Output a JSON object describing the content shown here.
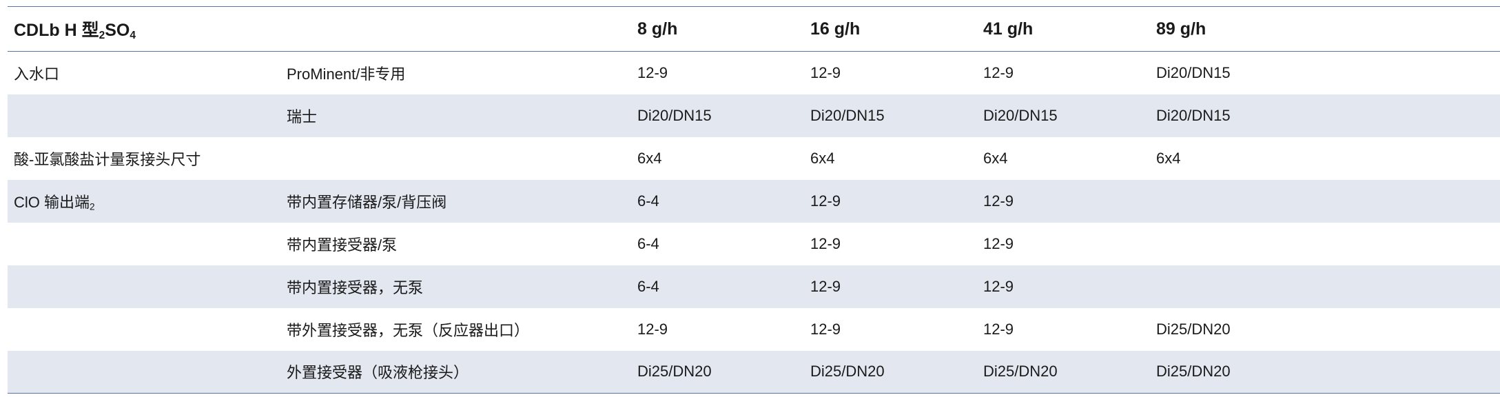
{
  "table": {
    "header": {
      "title": "CDLb H 型",
      "title_sub1": "2",
      "title_mid": "SO",
      "title_sub2": "4",
      "empty": "",
      "columns": [
        "8 g/h",
        "16 g/h",
        "41 g/h",
        "89 g/h"
      ]
    },
    "rows": [
      {
        "label": "入水口",
        "label_sub": "",
        "sublabel": "ProMinent/非专用",
        "values": [
          "12-9",
          "12-9",
          "12-9",
          "Di20/DN15"
        ],
        "shaded": false
      },
      {
        "label": "",
        "label_sub": "",
        "sublabel": "瑞士",
        "values": [
          "Di20/DN15",
          "Di20/DN15",
          "Di20/DN15",
          "Di20/DN15"
        ],
        "shaded": true
      },
      {
        "label": "酸-亚氯酸盐计量泵接头尺寸",
        "label_sub": "",
        "sublabel": "",
        "values": [
          "6x4",
          "6x4",
          "6x4",
          "6x4"
        ],
        "shaded": false
      },
      {
        "label": "ClO 输出端",
        "label_sub": "2",
        "sublabel": "带内置存储器/泵/背压阀",
        "values": [
          "6-4",
          "12-9",
          "12-9",
          ""
        ],
        "shaded": true
      },
      {
        "label": "",
        "label_sub": "",
        "sublabel": "带内置接受器/泵",
        "values": [
          "6-4",
          "12-9",
          "12-9",
          ""
        ],
        "shaded": false
      },
      {
        "label": "",
        "label_sub": "",
        "sublabel": "带内置接受器，无泵",
        "values": [
          "6-4",
          "12-9",
          "12-9",
          ""
        ],
        "shaded": true
      },
      {
        "label": "",
        "label_sub": "",
        "sublabel": "带外置接受器，无泵（反应器出口）",
        "values": [
          "12-9",
          "12-9",
          "12-9",
          "Di25/DN20"
        ],
        "shaded": false
      },
      {
        "label": "",
        "label_sub": "",
        "sublabel": "外置接受器（吸液枪接头）",
        "values": [
          "Di25/DN20",
          "Di25/DN20",
          "Di25/DN20",
          "Di25/DN20"
        ],
        "shaded": true
      }
    ]
  },
  "colors": {
    "rule": "#5b73a8",
    "shaded_row": "#e3e7f0",
    "text": "#1a1a1a"
  }
}
